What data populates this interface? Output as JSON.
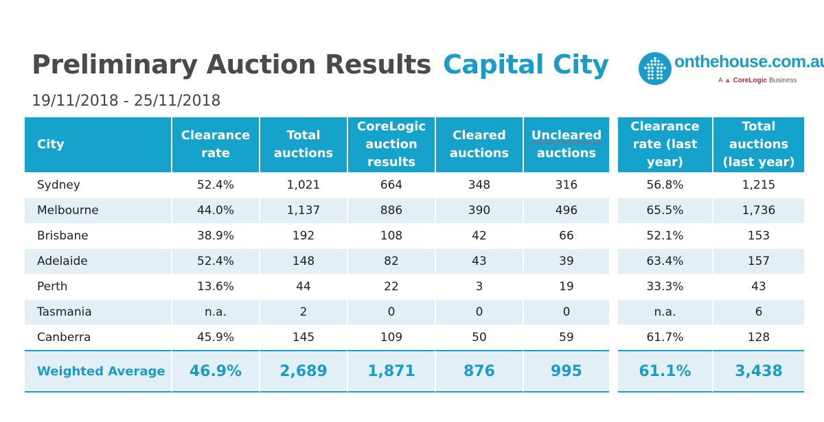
{
  "header": {
    "title": "Preliminary Auction Results",
    "subtitle": "Capital City",
    "date_range": "19/11/2018 - 25/11/2018"
  },
  "logo": {
    "name": "onthehouse.com.au",
    "tag_prefix": "A",
    "tag_brand": "CoreLogic",
    "tag_suffix": "Business"
  },
  "table": {
    "headers": {
      "city": "City",
      "clearance": "Clearance rate",
      "total": "Total auctions",
      "corelogic": "CoreLogic auction results",
      "cleared": "Cleared auctions",
      "uncleared_a": "Uncleared",
      "uncleared_b": "auctions",
      "clearance_ly": "Clearance rate (last year)",
      "total_ly": "Total auctions (last year)"
    },
    "rows": [
      {
        "city": "Sydney",
        "clearance": "52.4%",
        "total": "1,021",
        "corelogic": "664",
        "cleared": "348",
        "uncleared": "316",
        "clearance_ly": "56.8%",
        "total_ly": "1,215"
      },
      {
        "city": "Melbourne",
        "clearance": "44.0%",
        "total": "1,137",
        "corelogic": "886",
        "cleared": "390",
        "uncleared": "496",
        "clearance_ly": "65.5%",
        "total_ly": "1,736"
      },
      {
        "city": "Brisbane",
        "clearance": "38.9%",
        "total": "192",
        "corelogic": "108",
        "cleared": "42",
        "uncleared": "66",
        "clearance_ly": "52.1%",
        "total_ly": "153"
      },
      {
        "city": "Adelaide",
        "clearance": "52.4%",
        "total": "148",
        "corelogic": "82",
        "cleared": "43",
        "uncleared": "39",
        "clearance_ly": "63.4%",
        "total_ly": "157"
      },
      {
        "city": "Perth",
        "clearance": "13.6%",
        "total": "44",
        "corelogic": "22",
        "cleared": "3",
        "uncleared": "19",
        "clearance_ly": "33.3%",
        "total_ly": "43"
      },
      {
        "city": "Tasmania",
        "clearance": "n.a.",
        "total": "2",
        "corelogic": "0",
        "cleared": "0",
        "uncleared": "0",
        "clearance_ly": "n.a.",
        "total_ly": "6"
      },
      {
        "city": "Canberra",
        "clearance": "45.9%",
        "total": "145",
        "corelogic": "109",
        "cleared": "50",
        "uncleared": "59",
        "clearance_ly": "61.7%",
        "total_ly": "128"
      }
    ],
    "average": {
      "city": "Weighted Average",
      "clearance": "46.9%",
      "total": "2,689",
      "corelogic": "1,871",
      "cleared": "876",
      "uncleared": "995",
      "clearance_ly": "61.1%",
      "total_ly": "3,438"
    }
  },
  "colors": {
    "accent": "#1b9cc8",
    "header_bg": "#15a3cc",
    "row_alt": "#e2eff5",
    "title": "#4a4a4a"
  }
}
